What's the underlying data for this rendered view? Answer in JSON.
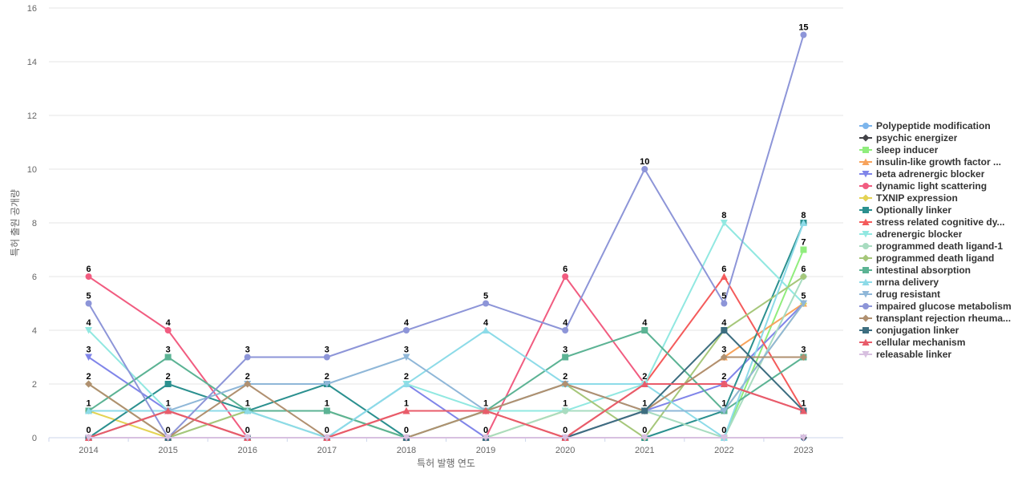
{
  "chart_data": {
    "type": "line",
    "title": "",
    "xlabel": "특허 발행 연도",
    "ylabel": "특허 출원 공개량",
    "x": [
      "2014",
      "2015",
      "2016",
      "2017",
      "2018",
      "2019",
      "2020",
      "2021",
      "2022",
      "2023"
    ],
    "ylim": [
      0,
      16
    ],
    "yticks": [
      0,
      2,
      4,
      6,
      8,
      10,
      12,
      14,
      16
    ],
    "grid": true,
    "legend_position": "right",
    "series": [
      {
        "name": "Polypeptide modification",
        "color": "#7cb5ec",
        "marker": "circle",
        "values": [
          0,
          0,
          0,
          0,
          0,
          0,
          0,
          0,
          0,
          0
        ]
      },
      {
        "name": "psychic energizer",
        "color": "#434348",
        "marker": "diamond",
        "values": [
          0,
          0,
          0,
          0,
          0,
          0,
          0,
          0,
          0,
          0
        ]
      },
      {
        "name": "sleep inducer",
        "color": "#90ed7d",
        "marker": "square",
        "values": [
          0,
          0,
          0,
          0,
          0,
          0,
          0,
          0,
          0,
          7
        ]
      },
      {
        "name": "insulin-like growth factor ...",
        "color": "#f7a35c",
        "marker": "triangle",
        "values": [
          0,
          0,
          0,
          0,
          0,
          0,
          0,
          1,
          3,
          5
        ]
      },
      {
        "name": "beta adrenergic blocker",
        "color": "#8085e9",
        "marker": "triangle-down",
        "values": [
          3,
          1,
          0,
          0,
          2,
          0,
          0,
          1,
          2,
          5
        ]
      },
      {
        "name": "dynamic light scattering",
        "color": "#f15c80",
        "marker": "circle",
        "values": [
          6,
          4,
          0,
          0,
          0,
          0,
          6,
          2,
          2,
          1
        ]
      },
      {
        "name": "TXNIP expression",
        "color": "#e4d354",
        "marker": "diamond",
        "values": [
          1,
          0,
          0,
          0,
          0,
          0,
          1,
          1,
          1,
          5
        ]
      },
      {
        "name": "Optionally linker",
        "color": "#2b908f",
        "marker": "square",
        "values": [
          0,
          2,
          1,
          2,
          0,
          0,
          0,
          0,
          1,
          8
        ]
      },
      {
        "name": "stress related cognitive dy...",
        "color": "#f45b5b",
        "marker": "triangle",
        "values": [
          0,
          1,
          0,
          0,
          1,
          1,
          0,
          2,
          6,
          1
        ]
      },
      {
        "name": "adrenergic blocker",
        "color": "#91e8e1",
        "marker": "triangle-down",
        "values": [
          4,
          1,
          1,
          0,
          2,
          1,
          1,
          2,
          8,
          5
        ]
      },
      {
        "name": "programmed death ligand-1",
        "color": "#a8dcc0",
        "marker": "circle",
        "values": [
          0,
          0,
          1,
          0,
          0,
          0,
          1,
          1,
          0,
          6
        ]
      },
      {
        "name": "programmed death ligand",
        "color": "#a6c77a",
        "marker": "diamond",
        "values": [
          2,
          0,
          1,
          1,
          0,
          1,
          2,
          0,
          4,
          6
        ]
      },
      {
        "name": "intestinal absorption",
        "color": "#5cb394",
        "marker": "square",
        "values": [
          1,
          3,
          1,
          1,
          0,
          1,
          3,
          4,
          1,
          3
        ]
      },
      {
        "name": "mrna delivery",
        "color": "#8ddbe8",
        "marker": "triangle",
        "values": [
          1,
          1,
          1,
          0,
          2,
          4,
          2,
          2,
          0,
          8
        ]
      },
      {
        "name": "drug resistant",
        "color": "#8fb7d8",
        "marker": "triangle-down",
        "values": [
          0,
          1,
          2,
          2,
          3,
          1,
          2,
          1,
          1,
          5
        ]
      },
      {
        "name": "impaired glucose metabolism",
        "color": "#8d95d8",
        "marker": "circle",
        "values": [
          5,
          0,
          3,
          3,
          4,
          5,
          4,
          10,
          5,
          15
        ]
      },
      {
        "name": "transplant rejection rheuma...",
        "color": "#b09070",
        "marker": "diamond",
        "values": [
          2,
          0,
          2,
          0,
          0,
          1,
          2,
          1,
          3,
          3
        ]
      },
      {
        "name": "conjugation linker",
        "color": "#3d6e80",
        "marker": "square",
        "values": [
          0,
          0,
          0,
          0,
          0,
          0,
          0,
          1,
          4,
          1
        ]
      },
      {
        "name": "cellular mechanism",
        "color": "#e85c6a",
        "marker": "triangle",
        "values": [
          0,
          1,
          0,
          0,
          1,
          1,
          0,
          2,
          2,
          1
        ]
      },
      {
        "name": "releasable linker",
        "color": "#d8c0e0",
        "marker": "triangle-down",
        "values": [
          0,
          0,
          0,
          0,
          0,
          0,
          0,
          0,
          0,
          0
        ]
      }
    ],
    "point_labels": [
      {
        "x": "2014",
        "values": [
          6,
          5,
          4,
          3,
          2,
          1,
          0
        ]
      },
      {
        "x": "2015",
        "values": [
          4,
          3,
          2,
          1,
          0
        ]
      },
      {
        "x": "2016",
        "values": [
          3,
          2,
          1,
          0
        ]
      },
      {
        "x": "2017",
        "values": [
          3,
          2,
          1,
          0
        ]
      },
      {
        "x": "2018",
        "values": [
          4,
          3,
          2,
          1,
          0
        ]
      },
      {
        "x": "2019",
        "values": [
          5,
          4,
          1,
          0
        ]
      },
      {
        "x": "2020",
        "values": [
          6,
          4,
          3,
          2,
          1,
          0
        ]
      },
      {
        "x": "2021",
        "values": [
          10,
          4,
          2,
          1,
          0
        ]
      },
      {
        "x": "2022",
        "values": [
          8,
          6,
          5,
          4,
          3,
          2,
          1,
          0
        ]
      },
      {
        "x": "2023",
        "values": [
          15,
          8,
          7,
          6,
          5,
          3,
          1
        ]
      }
    ]
  }
}
